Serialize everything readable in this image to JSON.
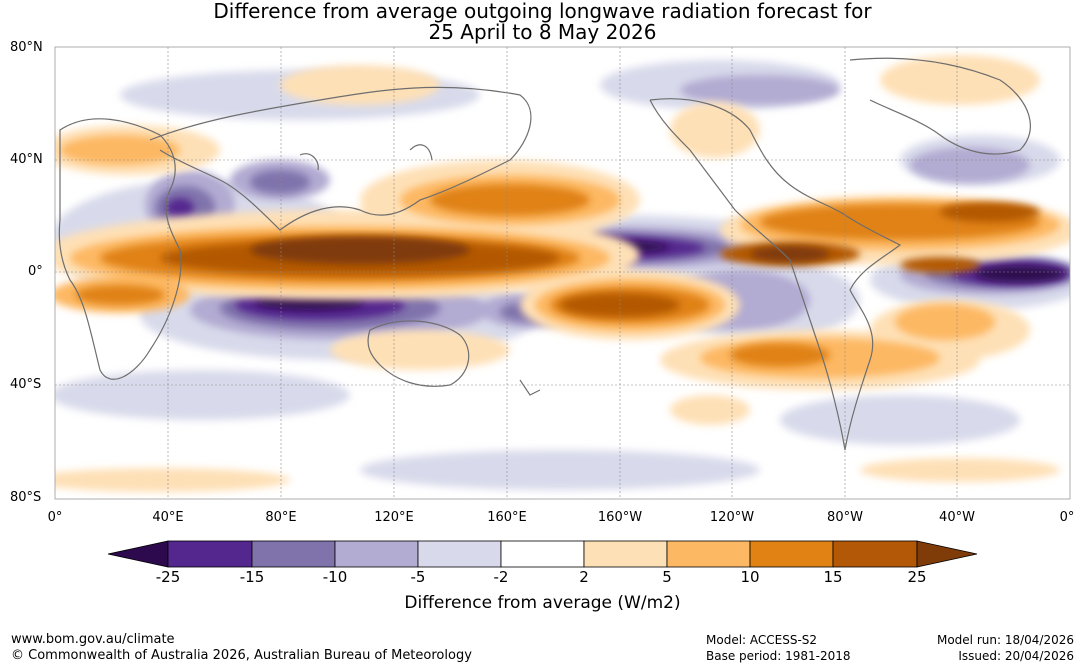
{
  "title": {
    "line1": "Difference from average outgoing longwave radiation forecast for",
    "line2": "25 April to 8 May 2026"
  },
  "axes": {
    "lat_labels": [
      "80°N",
      "40°N",
      "0°",
      "40°S",
      "80°S"
    ],
    "lon_labels": [
      "0°",
      "40°E",
      "80°E",
      "120°E",
      "160°E",
      "160°W",
      "120°W",
      "80°W",
      "40°W",
      "0°"
    ]
  },
  "legend": {
    "title": "Difference from average (W/m2)",
    "ticks": [
      "-25",
      "-15",
      "-10",
      "-5",
      "-2",
      "2",
      "5",
      "10",
      "15",
      "25"
    ],
    "colors": [
      "#2d0a4e",
      "#54278f",
      "#8073ac",
      "#b2abd2",
      "#d8daeb",
      "#ffffff",
      "#fee0b6",
      "#fdb863",
      "#e08214",
      "#b35806",
      "#7f3b08"
    ]
  },
  "footer": {
    "website": "www.bom.gov.au/climate",
    "copyright": "© Commonwealth of Australia 2026, Australian Bureau of Meteorology",
    "model": "Model: ACCESS-S2",
    "base_period": "Base period: 1981-2018",
    "model_run": "Model run: 18/04/2026",
    "issued": "Issued: 20/04/2026"
  }
}
